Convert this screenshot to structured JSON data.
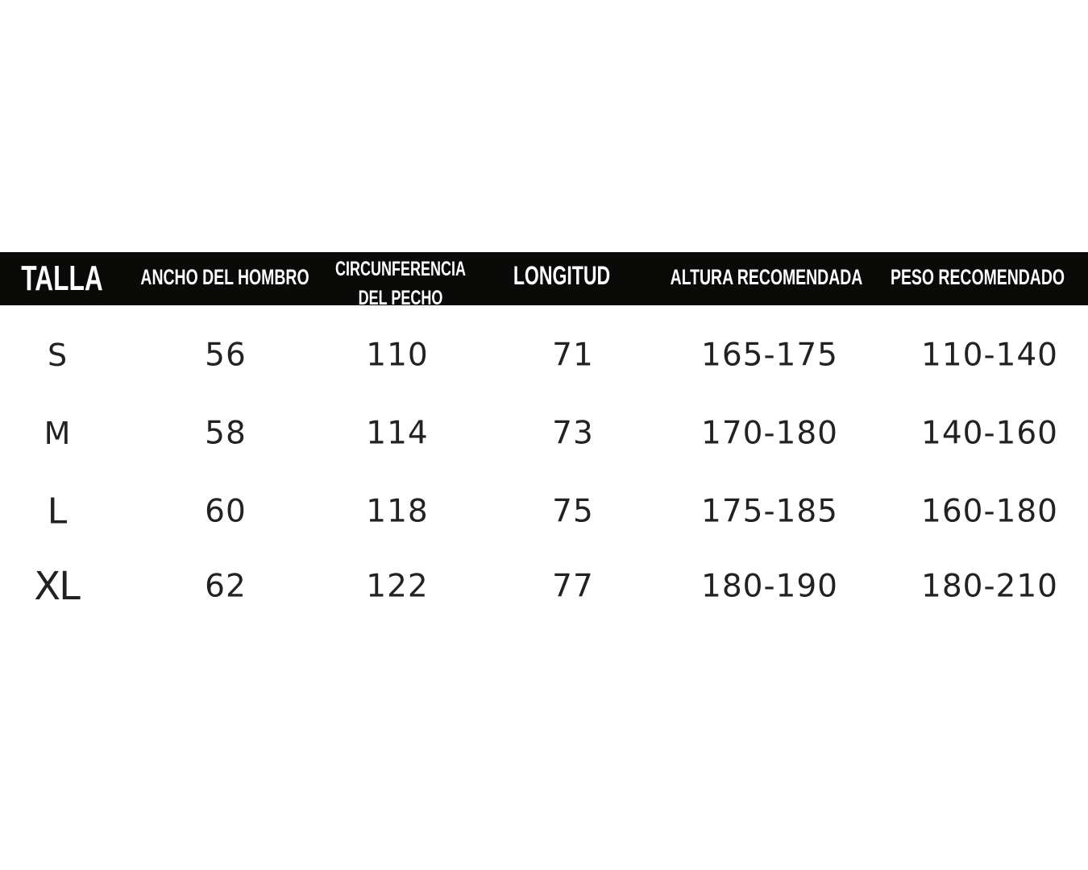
{
  "table": {
    "headers": [
      "TALLA",
      "ANCHO DEL HOMBRO",
      "CIRCUNFERENCIA DEL PECHO",
      "LONGITUD",
      "ALTURA RECOMENDADA",
      "PESO RECOMENDADO"
    ],
    "header_lines": {
      "circ_1": "CIRCUNFERENCIA",
      "circ_2": "DEL PECHO"
    },
    "rows": [
      [
        "S",
        "56",
        "110",
        "71",
        "165-175",
        "110-140"
      ],
      [
        "M",
        "58",
        "114",
        "73",
        "170-180",
        "140-160"
      ],
      [
        "L",
        "60",
        "118",
        "75",
        "175-185",
        "160-180"
      ],
      [
        "XL",
        "62",
        "122",
        "77",
        "180-190",
        "180-210"
      ]
    ],
    "colors": {
      "header_bg": "#0a0a08",
      "header_text": "#ffffff",
      "cell_text": "#222222"
    }
  }
}
